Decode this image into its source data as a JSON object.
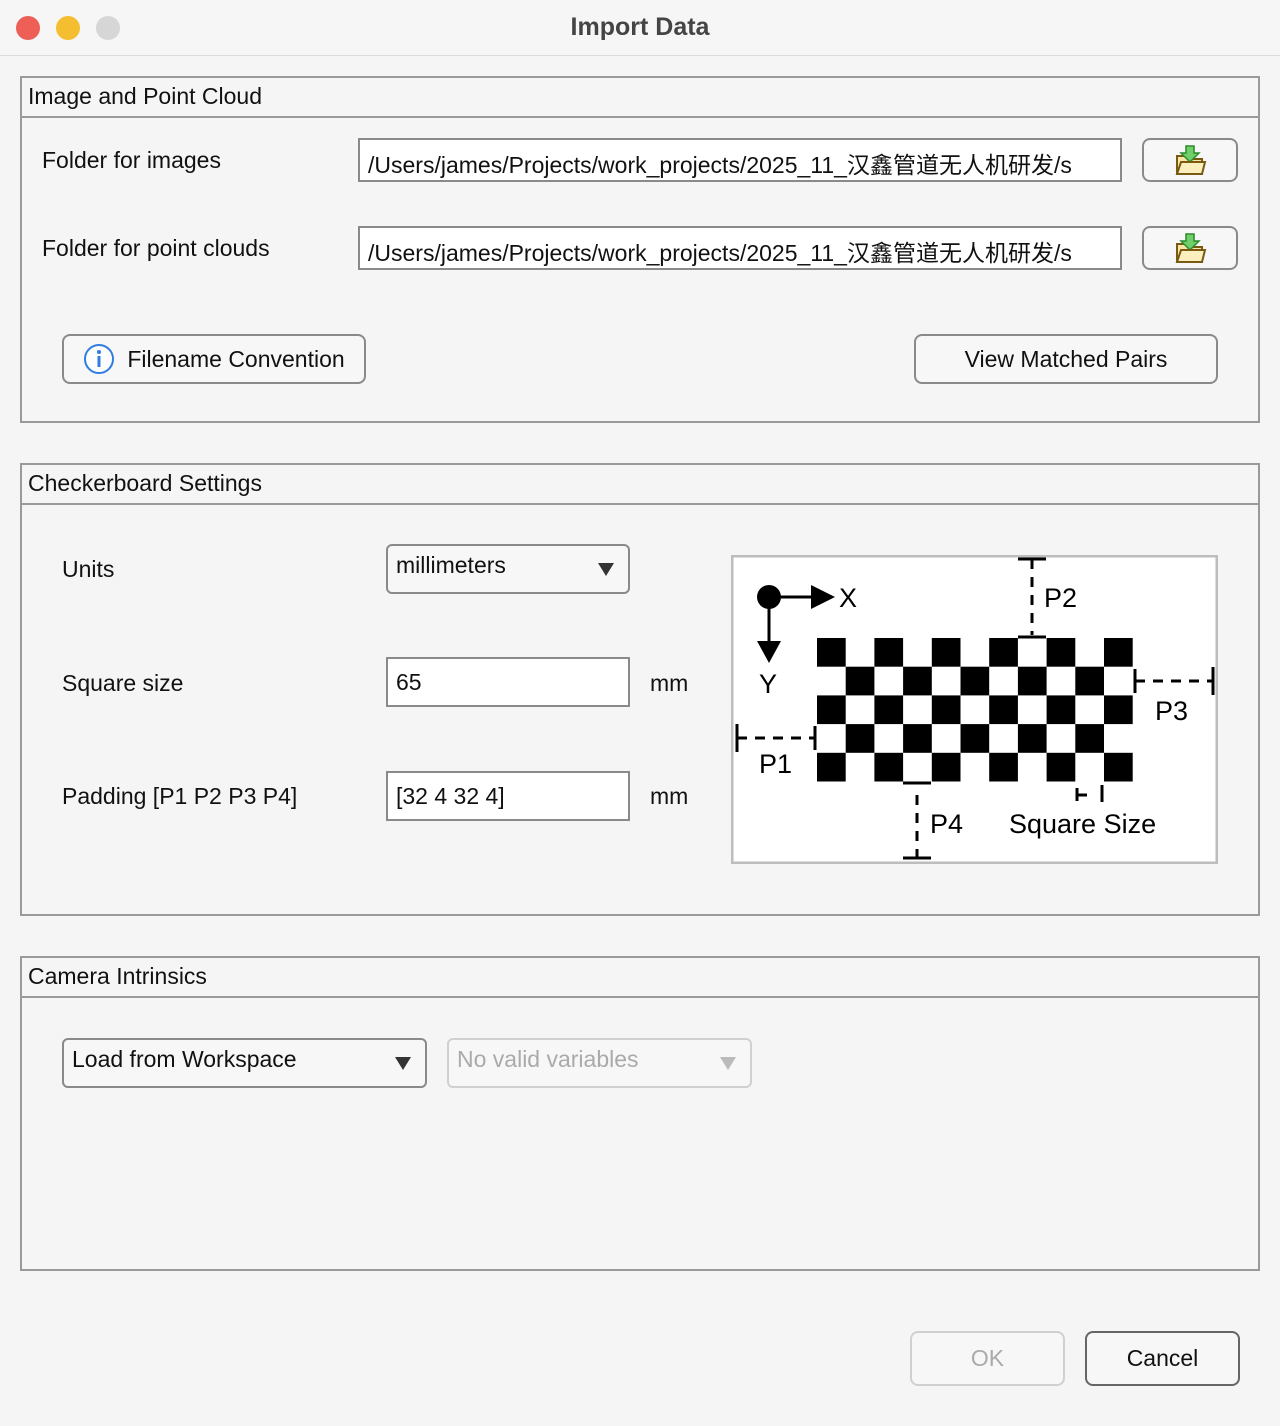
{
  "window": {
    "title": "Import Data"
  },
  "image_panel": {
    "title": "Image and Point Cloud",
    "images_label": "Folder for images",
    "images_value": "/Users/james/Projects/work_projects/2025_11_汉鑫管道无人机研发/s",
    "clouds_label": "Folder for point clouds",
    "clouds_value": "/Users/james/Projects/work_projects/2025_11_汉鑫管道无人机研发/s",
    "filename_convention": "Filename Convention",
    "view_pairs": "View Matched Pairs"
  },
  "checker_panel": {
    "title": "Checkerboard Settings",
    "units_label": "Units",
    "units_value": "millimeters",
    "square_label": "Square size",
    "square_value": "65",
    "square_unit": "mm",
    "padding_label": "Padding [P1 P2 P3 P4]",
    "padding_value": "[32 4 32 4]",
    "padding_unit": "mm",
    "diagram": {
      "x": "X",
      "y": "Y",
      "p1": "P1",
      "p2": "P2",
      "p3": "P3",
      "p4": "P4",
      "square_size": "Square Size"
    }
  },
  "intrinsics_panel": {
    "title": "Camera Intrinsics",
    "source": "Load from Workspace",
    "variable": "No valid variables"
  },
  "footer": {
    "ok": "OK",
    "cancel": "Cancel"
  }
}
